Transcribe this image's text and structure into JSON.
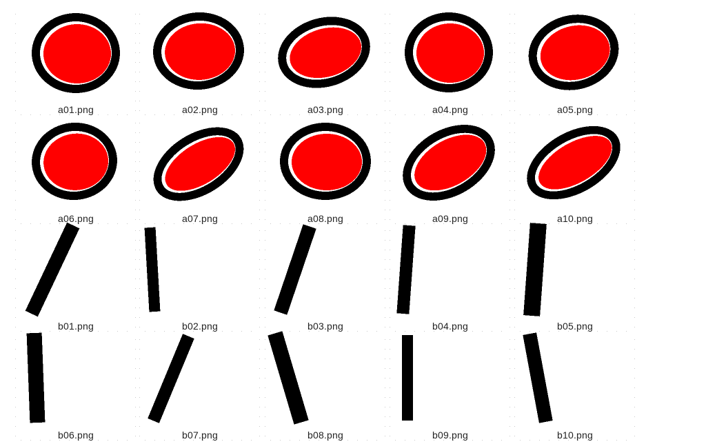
{
  "colors": {
    "fill": "#ff0000",
    "outline": "#000000",
    "background": "#ffffff",
    "dots": "#c8c8c8"
  },
  "tiles": [
    {
      "label": "a01.png",
      "kind": "ellipse",
      "tilt": "none"
    },
    {
      "label": "a02.png",
      "kind": "ellipse",
      "tilt": "none"
    },
    {
      "label": "a03.png",
      "kind": "ellipse",
      "tilt": "slight"
    },
    {
      "label": "a04.png",
      "kind": "ellipse",
      "tilt": "none"
    },
    {
      "label": "a05.png",
      "kind": "ellipse",
      "tilt": "slight"
    },
    {
      "label": "a06.png",
      "kind": "ellipse",
      "tilt": "none"
    },
    {
      "label": "a07.png",
      "kind": "ellipse",
      "tilt": "strong"
    },
    {
      "label": "a08.png",
      "kind": "ellipse",
      "tilt": "none"
    },
    {
      "label": "a09.png",
      "kind": "ellipse",
      "tilt": "strong"
    },
    {
      "label": "a10.png",
      "kind": "ellipse",
      "tilt": "strong"
    },
    {
      "label": "b01.png",
      "kind": "stroke",
      "tilt": "right"
    },
    {
      "label": "b02.png",
      "kind": "stroke",
      "tilt": "vertical"
    },
    {
      "label": "b03.png",
      "kind": "stroke",
      "tilt": "right"
    },
    {
      "label": "b04.png",
      "kind": "stroke",
      "tilt": "vertical"
    },
    {
      "label": "b05.png",
      "kind": "stroke",
      "tilt": "vertical"
    },
    {
      "label": "b06.png",
      "kind": "stroke",
      "tilt": "vertical"
    },
    {
      "label": "b07.png",
      "kind": "stroke",
      "tilt": "right"
    },
    {
      "label": "b08.png",
      "kind": "stroke",
      "tilt": "left"
    },
    {
      "label": "b09.png",
      "kind": "stroke",
      "tilt": "vertical"
    },
    {
      "label": "b10.png",
      "kind": "stroke",
      "tilt": "left"
    }
  ]
}
